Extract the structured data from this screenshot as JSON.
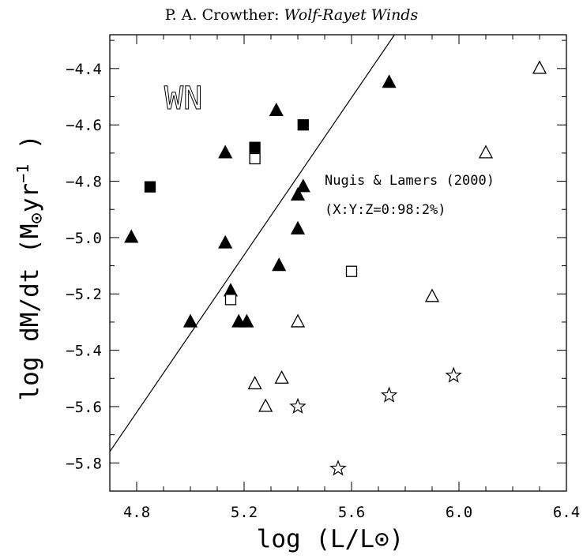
{
  "header": {
    "author": "P. A. Crowther:",
    "title": "Wolf-Rayet Winds"
  },
  "chart_data": {
    "type": "scatter",
    "panel_label": "WN",
    "xlabel": "log (L/L⊙)",
    "ylabel_parts": {
      "pre": "log dM/dt (M",
      "sun": "⊙",
      "mid": "yr",
      "sup": "−1",
      "post": " )"
    },
    "xlim": [
      4.7,
      6.4
    ],
    "ylim": [
      -5.9,
      -4.28
    ],
    "x_ticks": [
      4.8,
      5.2,
      5.6,
      6.0,
      6.4
    ],
    "x_tick_labels": [
      "4.8",
      "5.2",
      "5.6",
      "6.0",
      "6.4"
    ],
    "y_ticks": [
      -5.8,
      -5.6,
      -5.4,
      -5.2,
      -5.0,
      -4.8,
      -4.6,
      -4.4
    ],
    "y_tick_labels": [
      "−5.8",
      "−5.6",
      "−5.4",
      "−5.2",
      "−5.0",
      "−4.8",
      "−4.6",
      "−4.4"
    ],
    "x_minor_step": 0.1,
    "y_minor_step": 0.1,
    "grid": false,
    "series": [
      {
        "marker": "filled-triangle",
        "points": [
          [
            4.78,
            -5.0
          ],
          [
            5.0,
            -5.3
          ],
          [
            5.13,
            -4.7
          ],
          [
            5.13,
            -5.02
          ],
          [
            5.15,
            -5.19
          ],
          [
            5.18,
            -5.3
          ],
          [
            5.21,
            -5.3
          ],
          [
            5.32,
            -4.55
          ],
          [
            5.33,
            -5.1
          ],
          [
            5.4,
            -4.85
          ],
          [
            5.4,
            -4.97
          ],
          [
            5.42,
            -4.82
          ],
          [
            5.74,
            -4.45
          ]
        ]
      },
      {
        "marker": "filled-square",
        "points": [
          [
            4.85,
            -4.82
          ],
          [
            5.24,
            -4.68
          ],
          [
            5.42,
            -4.6
          ]
        ]
      },
      {
        "marker": "open-square",
        "points": [
          [
            5.24,
            -4.72
          ],
          [
            5.15,
            -5.22
          ],
          [
            5.6,
            -5.12
          ]
        ]
      },
      {
        "marker": "open-triangle",
        "points": [
          [
            6.3,
            -4.4
          ],
          [
            6.1,
            -4.7
          ],
          [
            5.9,
            -5.21
          ],
          [
            5.4,
            -5.3
          ],
          [
            5.24,
            -5.52
          ],
          [
            5.34,
            -5.5
          ],
          [
            5.28,
            -5.6
          ]
        ]
      },
      {
        "marker": "open-star",
        "points": [
          [
            5.4,
            -5.6
          ],
          [
            5.55,
            -5.82
          ],
          [
            5.74,
            -5.56
          ],
          [
            5.98,
            -5.49
          ]
        ]
      }
    ],
    "relation_line": {
      "name": "Nugis & Lamers (2000)",
      "composition": "(X:Y:Z=0:98:2%)",
      "x": [
        4.7,
        5.76
      ],
      "y": [
        -5.76,
        -4.28
      ]
    }
  }
}
